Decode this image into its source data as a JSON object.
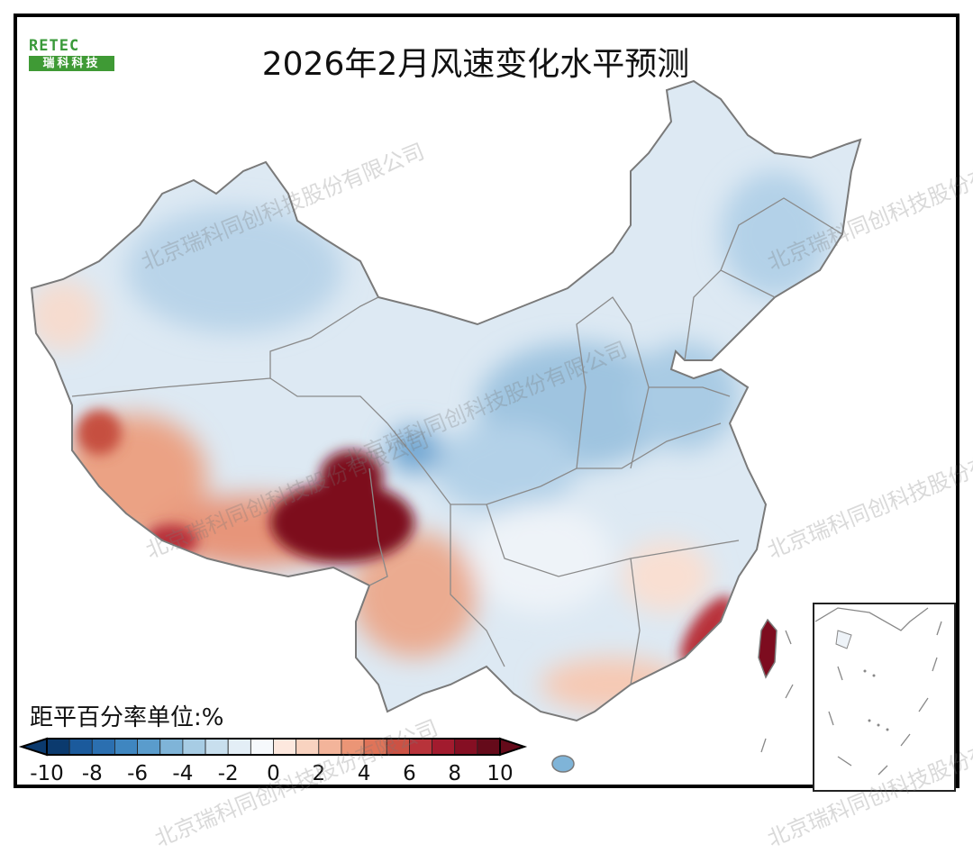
{
  "title": "2026年2月风速变化水平预测",
  "logo": {
    "text_top": "RETEC",
    "text_bottom": "瑞科科技"
  },
  "watermark": "北京瑞科同创科技股份有限公司",
  "legend": {
    "label": "距平百分率单位:%",
    "ticks": [
      "-10",
      "-8",
      "-6",
      "-4",
      "-2",
      "0",
      "2",
      "4",
      "6",
      "8",
      "10"
    ],
    "min": -10,
    "max": 10,
    "step": 1,
    "colors": [
      "#0b3a6e",
      "#1b5a9c",
      "#2b6fb0",
      "#3f86c0",
      "#5a9ccc",
      "#7fb4d8",
      "#a7cce4",
      "#c8dfee",
      "#e3eef6",
      "#f6f9fc",
      "#fde8de",
      "#f9d3c0",
      "#f3b49a",
      "#eb9576",
      "#df7459",
      "#cc5244",
      "#b8333a",
      "#a21b2e",
      "#850f23",
      "#650a1a"
    ]
  },
  "colors": {
    "base": "#dde9f3",
    "border": "#7a7a7a"
  }
}
